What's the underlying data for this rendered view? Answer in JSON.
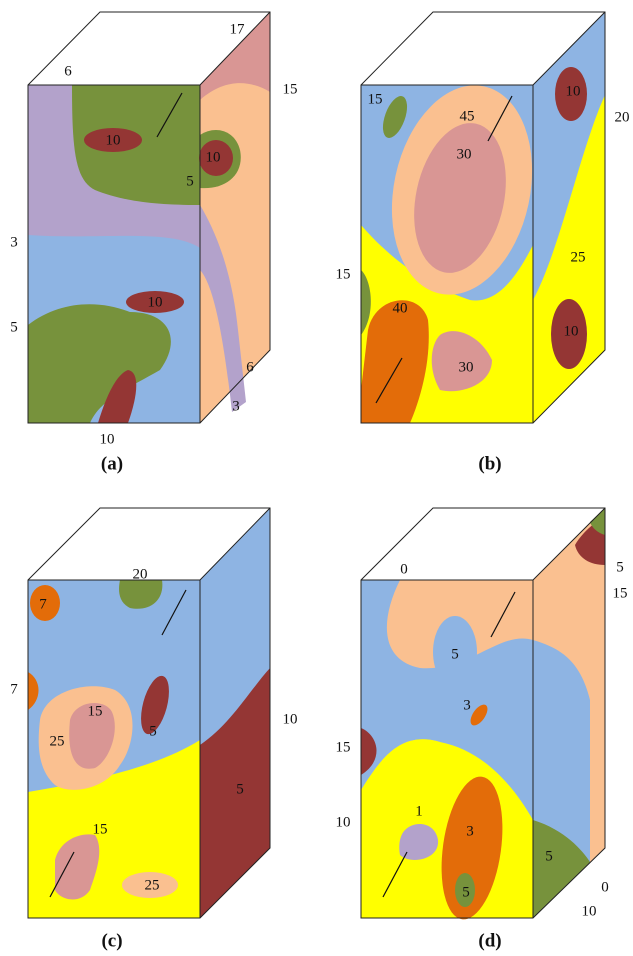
{
  "panels": [
    {
      "caption": "(a)",
      "labels": [
        "17",
        "6",
        "15",
        "10",
        "10",
        "5",
        "3",
        "5",
        "10",
        "6",
        "3",
        "10"
      ]
    },
    {
      "caption": "(b)",
      "labels": [
        "15",
        "45",
        "30",
        "10",
        "20",
        "15",
        "25",
        "40",
        "30",
        "10"
      ]
    },
    {
      "caption": "(c)",
      "labels": [
        "7",
        "20",
        "7",
        "25",
        "15",
        "5",
        "10",
        "5",
        "15",
        "25"
      ]
    },
    {
      "caption": "(d)",
      "labels": [
        "0",
        "5",
        "5",
        "15",
        "3",
        "15",
        "1",
        "3",
        "10",
        "5",
        "5",
        "0",
        "10"
      ]
    }
  ]
}
